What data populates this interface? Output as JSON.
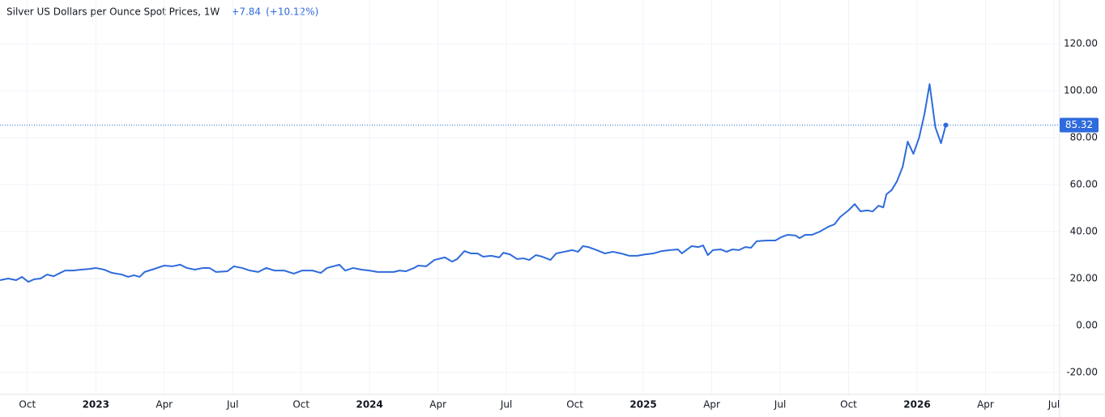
{
  "chart_data": {
    "type": "line",
    "title": "Silver US Dollars per Ounce Spot Prices, 1W",
    "change": "+7.84",
    "change_pct": "(+10.12%)",
    "xlim": [
      -4.2,
      42.25
    ],
    "xticks": [
      {
        "value": -3,
        "label": "Oct"
      },
      {
        "value": 0,
        "label": "2023"
      },
      {
        "value": 3,
        "label": "Apr"
      },
      {
        "value": 6,
        "label": "Jul"
      },
      {
        "value": 9,
        "label": "Oct"
      },
      {
        "value": 12,
        "label": "2024"
      },
      {
        "value": 15,
        "label": "Apr"
      },
      {
        "value": 18,
        "label": "Jul"
      },
      {
        "value": 21,
        "label": "Oct"
      },
      {
        "value": 24,
        "label": "2025"
      },
      {
        "value": 27,
        "label": "Apr"
      },
      {
        "value": 30,
        "label": "Jul"
      },
      {
        "value": 33,
        "label": "Oct"
      },
      {
        "value": 36,
        "label": "2026"
      },
      {
        "value": 39,
        "label": "Apr"
      },
      {
        "value": 42,
        "label": "Jul"
      }
    ],
    "ylim": [
      -29.3,
      138.6
    ],
    "yticks": [
      {
        "value": -20,
        "label": "-20.00"
      },
      {
        "value": 0,
        "label": "0.00"
      },
      {
        "value": 20,
        "label": "20.00"
      },
      {
        "value": 40,
        "label": "40.00"
      },
      {
        "value": 60,
        "label": "60.00"
      },
      {
        "value": 80,
        "label": "80.00"
      },
      {
        "value": 100,
        "label": "100.00"
      },
      {
        "value": 120,
        "label": "120.00"
      }
    ],
    "grid": true,
    "x": [
      -4.2,
      -3.84,
      -3.49,
      -3.24,
      -2.96,
      -2.7,
      -2.42,
      -2.14,
      -1.85,
      -1.64,
      -1.35,
      -1.0,
      -0.64,
      -0.28,
      0,
      0.36,
      0.71,
      1.14,
      1.42,
      1.67,
      1.92,
      2.14,
      2.56,
      2.99,
      3.35,
      3.7,
      3.99,
      4.34,
      4.7,
      4.98,
      5.27,
      5.77,
      6.05,
      6.41,
      6.76,
      7.12,
      7.47,
      7.83,
      8.26,
      8.68,
      9.04,
      9.5,
      9.86,
      10.14,
      10.68,
      10.93,
      11.28,
      11.64,
      11.99,
      12.35,
      12.7,
      13.06,
      13.31,
      13.59,
      13.95,
      14.13,
      14.48,
      14.84,
      15.3,
      15.62,
      15.84,
      16.16,
      16.44,
      16.73,
      16.98,
      17.33,
      17.69,
      17.86,
      18.15,
      18.47,
      18.75,
      19.0,
      19.29,
      19.57,
      19.93,
      20.18,
      20.53,
      20.89,
      21.14,
      21.35,
      21.6,
      21.96,
      22.31,
      22.67,
      23.02,
      23.38,
      23.74,
      24.09,
      24.45,
      24.8,
      25.16,
      25.52,
      25.69,
      26.12,
      26.41,
      26.62,
      26.83,
      27.05,
      27.4,
      27.65,
      27.9,
      28.19,
      28.47,
      28.72,
      28.97,
      29.43,
      29.79,
      30.04,
      30.32,
      30.68,
      30.85,
      31.1,
      31.39,
      31.74,
      32.1,
      32.38,
      32.63,
      32.99,
      33.27,
      33.52,
      33.81,
      34.06,
      34.31,
      34.52,
      34.66,
      34.88,
      35.12,
      35.37,
      35.59,
      35.84,
      36.09,
      36.33,
      36.55,
      36.8,
      37.05,
      37.26
    ],
    "series": [
      {
        "name": "Silver US Dollars per Ounce Spot Prices",
        "color": "#2f6bdc",
        "values": [
          19.3,
          20,
          19.3,
          20.7,
          18.6,
          19.7,
          20,
          21.7,
          21,
          22,
          23.4,
          23.4,
          23.8,
          24.1,
          24.5,
          23.8,
          22.4,
          21.7,
          20.7,
          21.4,
          20.7,
          22.8,
          24.1,
          25.5,
          25.2,
          25.9,
          24.5,
          23.8,
          24.5,
          24.5,
          22.8,
          23.1,
          25.2,
          24.5,
          23.4,
          22.8,
          24.5,
          23.4,
          23.4,
          22.1,
          23.4,
          23.4,
          22.4,
          24.5,
          25.9,
          23.4,
          24.5,
          23.8,
          23.4,
          22.8,
          22.8,
          22.8,
          23.4,
          23.1,
          24.5,
          25.5,
          25.2,
          27.9,
          29,
          27.2,
          28.3,
          31.7,
          30.7,
          30.7,
          29.3,
          29.7,
          29,
          31,
          30.3,
          28.3,
          28.6,
          27.9,
          30,
          29.3,
          27.9,
          30.7,
          31.4,
          32.1,
          31.4,
          33.8,
          33.4,
          32.1,
          30.7,
          31.4,
          30.7,
          29.7,
          29.7,
          30.3,
          30.7,
          31.7,
          32.1,
          32.4,
          30.7,
          33.8,
          33.4,
          34.1,
          30,
          32.1,
          32.4,
          31.4,
          32.4,
          32.1,
          33.4,
          33.1,
          35.9,
          36.2,
          36.2,
          37.6,
          38.6,
          38.3,
          37.2,
          38.6,
          38.6,
          40,
          42,
          43.1,
          46.2,
          49,
          51.7,
          48.6,
          49,
          48.6,
          51,
          50.3,
          55.9,
          57.6,
          61.4,
          67.6,
          78.3,
          73.1,
          80,
          90.3,
          102.8,
          84.5,
          77.6,
          85.32
        ]
      }
    ]
  }
}
